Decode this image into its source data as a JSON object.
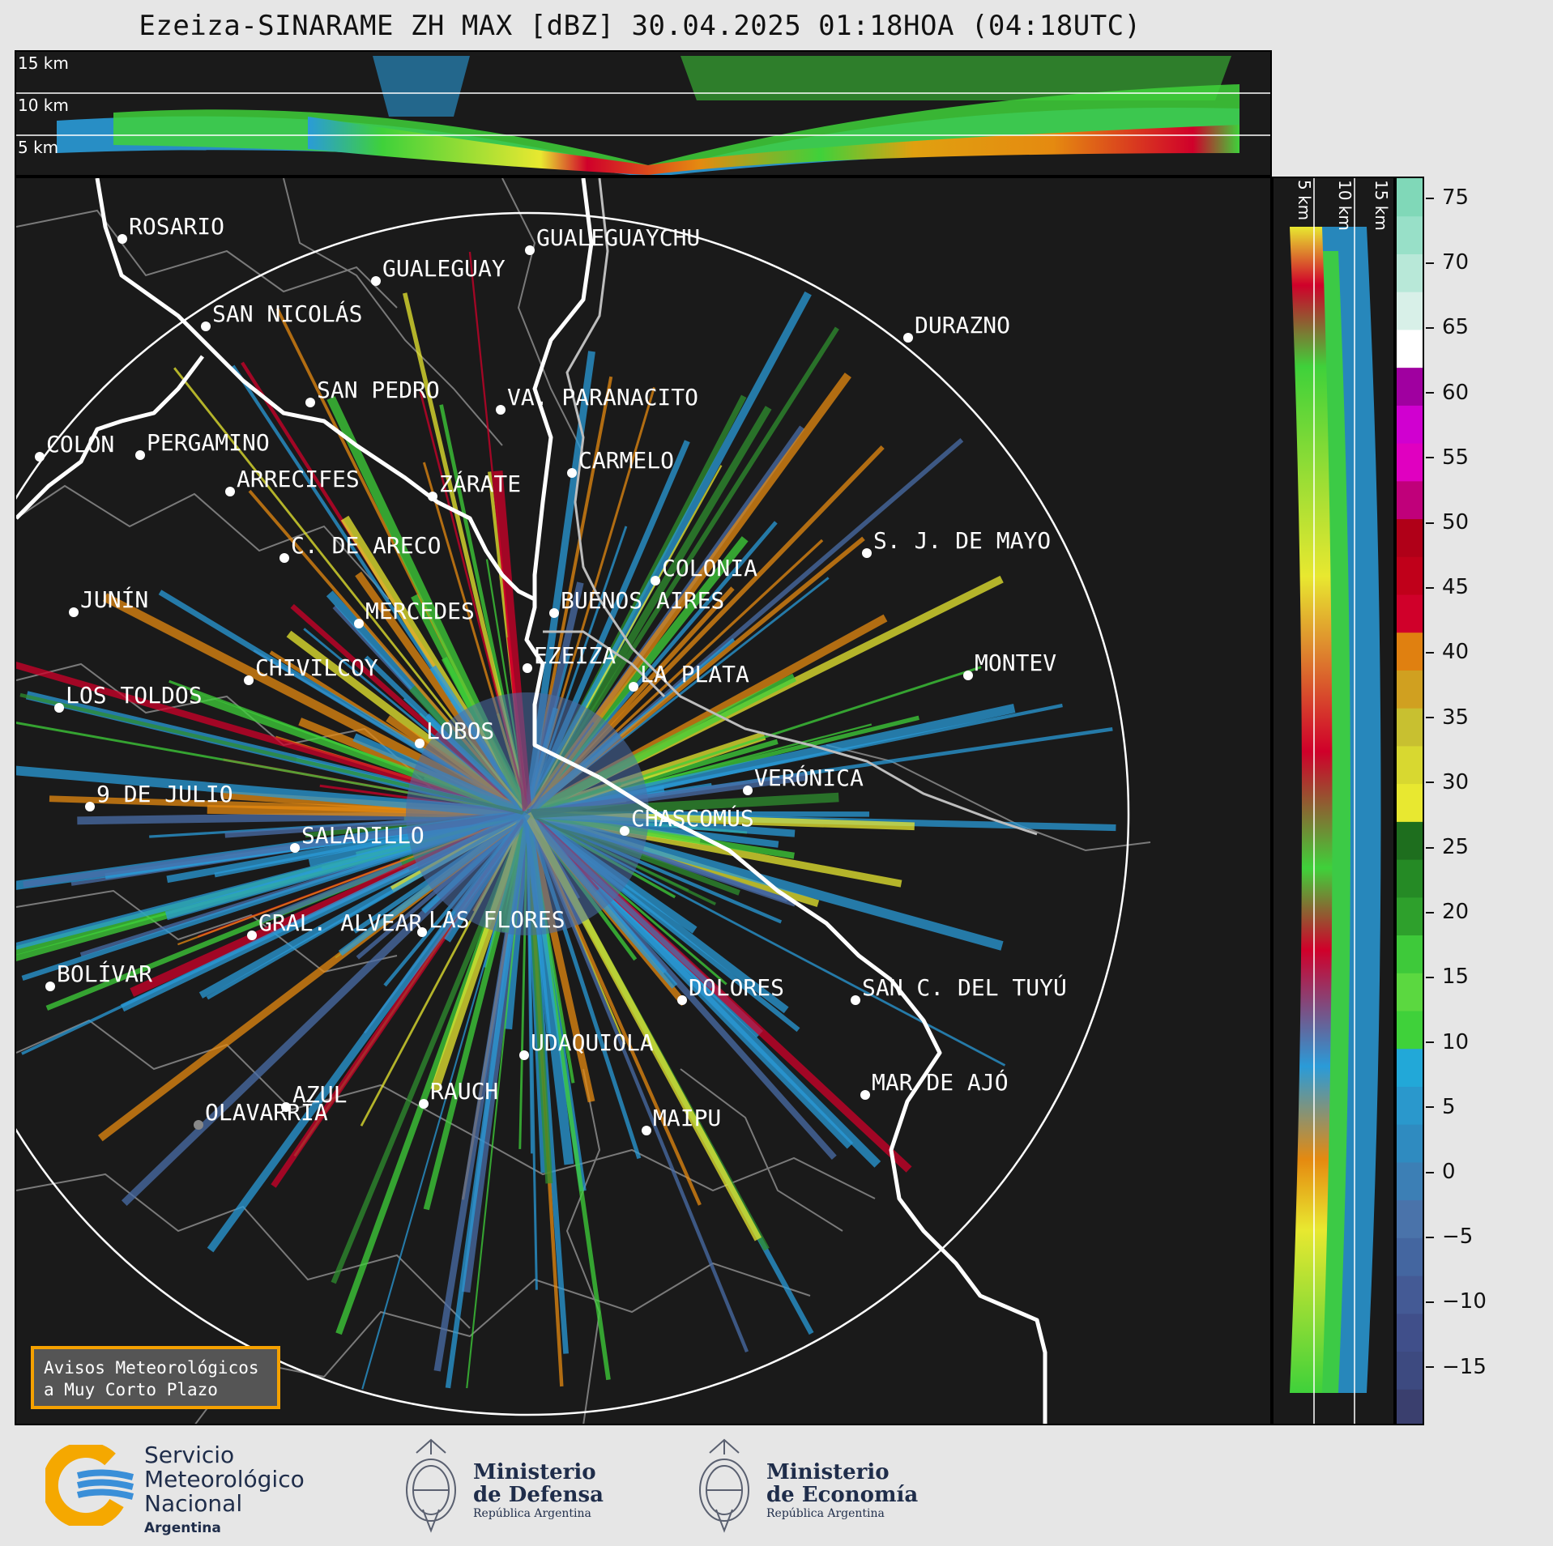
{
  "title": "Ezeiza-SINARAME ZH MAX [dBZ] 30.04.2025 01:18HOA (04:18UTC)",
  "top_panel": {
    "altitude_labels": [
      "15 km",
      "10 km",
      "5 km"
    ]
  },
  "side_panel": {
    "altitude_labels": [
      "5 km",
      "10 km",
      "15 km"
    ]
  },
  "colorbar": {
    "unit": "dBZ",
    "ticks": [
      "75",
      "70",
      "65",
      "60",
      "55",
      "50",
      "45",
      "40",
      "35",
      "30",
      "25",
      "20",
      "15",
      "10",
      "5",
      "0",
      "−5",
      "−10",
      "−15"
    ]
  },
  "cities": [
    {
      "name": "ROSARIO"
    },
    {
      "name": "GUALEGUAYCHU"
    },
    {
      "name": "GUALEGUAY"
    },
    {
      "name": "SAN NICOLÁS"
    },
    {
      "name": "DURAZNO"
    },
    {
      "name": "SAN PEDRO"
    },
    {
      "name": "VA. PARANACITO"
    },
    {
      "name": "COLON"
    },
    {
      "name": "PERGAMINO"
    },
    {
      "name": "CARMELO"
    },
    {
      "name": "ARRECIFES"
    },
    {
      "name": "ZÁRATE"
    },
    {
      "name": "S. J. DE MAYO"
    },
    {
      "name": "C. DE ARECO"
    },
    {
      "name": "COLONIA"
    },
    {
      "name": "JUNÍN"
    },
    {
      "name": "BUENOS AIRES"
    },
    {
      "name": "MERCEDES"
    },
    {
      "name": "EZEIZA"
    },
    {
      "name": "MONTEV"
    },
    {
      "name": "CHIVILCOY"
    },
    {
      "name": "LA PLATA"
    },
    {
      "name": "LOS TOLDOS"
    },
    {
      "name": "LOBOS"
    },
    {
      "name": "VERÓNICA"
    },
    {
      "name": "9 DE JULIO"
    },
    {
      "name": "CHASCOMÚS"
    },
    {
      "name": "SALADILLO"
    },
    {
      "name": "GRAL. ALVEAR"
    },
    {
      "name": "LAS FLORES"
    },
    {
      "name": "BOLÍVAR"
    },
    {
      "name": "DOLORES"
    },
    {
      "name": "SAN C. DEL TUYÚ"
    },
    {
      "name": "UDAQUIOLA"
    },
    {
      "name": "MAR DE AJÓ"
    },
    {
      "name": "AZUL"
    },
    {
      "name": "RAUCH"
    },
    {
      "name": "OLAVARRÍA"
    },
    {
      "name": "MAIPU"
    }
  ],
  "aviso": {
    "line1": "Avisos Meteorológicos",
    "line2": "a Muy Corto Plazo"
  },
  "logos": {
    "smn": {
      "line1": "Servicio",
      "line2": "Meteorológico",
      "line3": "Nacional",
      "line4": "Argentina"
    },
    "defensa": {
      "line1": "Ministerio",
      "line2": "de Defensa",
      "line3": "República Argentina"
    },
    "economia": {
      "line1": "Ministerio",
      "line2": "de Economía",
      "line3": "República Argentina"
    }
  },
  "colors": {
    "panel_bg": "#1a1a1a",
    "range_ring": "#ffffff",
    "river": "#ffffff",
    "borders": "#808080",
    "accent_aviso": "#f5a100"
  }
}
